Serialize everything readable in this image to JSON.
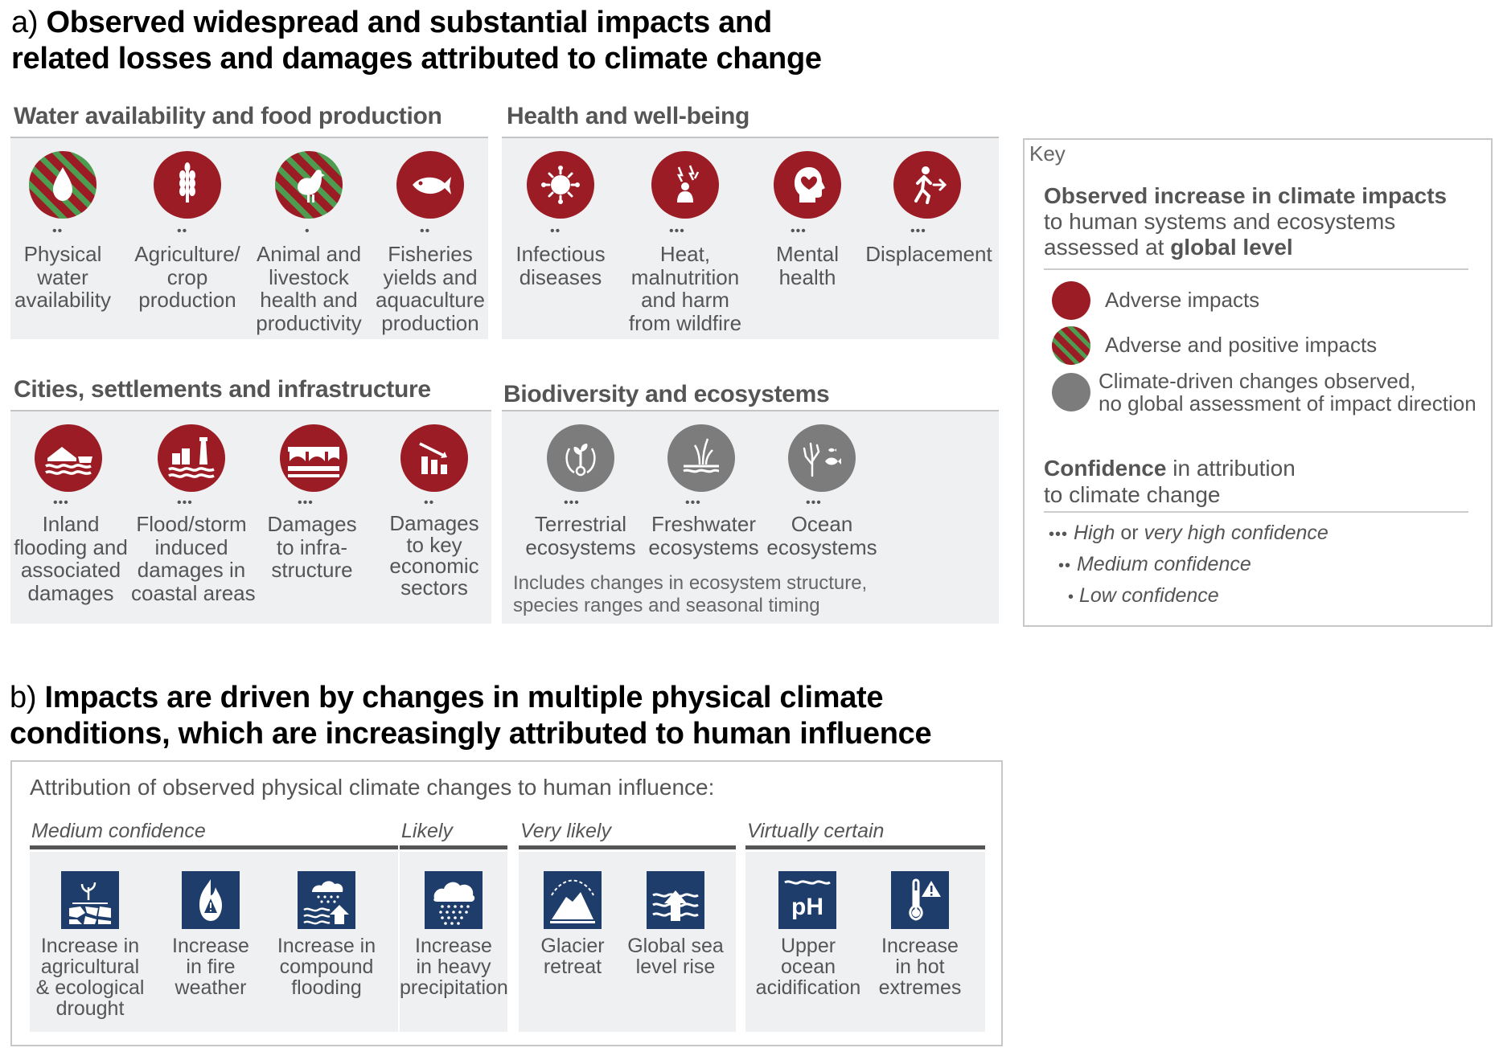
{
  "panel_a": {
    "letter": "a)",
    "title_line1": "Observed widespread and substantial impacts and",
    "title_line2": "related losses and damages attributed to climate change",
    "groups": [
      {
        "heading": "Water availability and food production",
        "tiles": [
          {
            "icon": "water-drop-icon",
            "impact": "adverse-and-positive",
            "dots": "••",
            "label": [
              "Physical",
              "water",
              "availability"
            ]
          },
          {
            "icon": "wheat-icon",
            "impact": "adverse",
            "dots": "••",
            "label": [
              "Agriculture/",
              "crop",
              "production"
            ]
          },
          {
            "icon": "chicken-icon",
            "impact": "adverse-and-positive",
            "dots": "•",
            "label": [
              "Animal and",
              "livestock",
              "health and",
              "productivity"
            ]
          },
          {
            "icon": "fish-icon",
            "impact": "adverse",
            "dots": "••",
            "label": [
              "Fisheries",
              "yields and",
              "aquaculture",
              "production"
            ]
          }
        ]
      },
      {
        "heading": "Health and well-being",
        "tiles": [
          {
            "icon": "virus-icon",
            "impact": "adverse",
            "dots": "••",
            "label": [
              "Infectious",
              "diseases"
            ]
          },
          {
            "icon": "heat-person-icon",
            "impact": "adverse",
            "dots": "•••",
            "label": [
              "Heat,",
              "malnutrition",
              "and harm",
              "from wildfire"
            ]
          },
          {
            "icon": "head-heart-icon",
            "impact": "adverse",
            "dots": "•••",
            "label": [
              "Mental",
              "health"
            ]
          },
          {
            "icon": "running-person-icon",
            "impact": "adverse",
            "dots": "•••",
            "label": [
              "Displacement"
            ]
          }
        ]
      },
      {
        "heading": "Cities, settlements and infrastructure",
        "tiles": [
          {
            "icon": "flooded-house-icon",
            "impact": "adverse",
            "dots": "•••",
            "label": [
              "Inland",
              "flooding and",
              "associated",
              "damages"
            ]
          },
          {
            "icon": "lighthouse-icon",
            "impact": "adverse",
            "dots": "•••",
            "label": [
              "Flood/storm",
              "induced",
              "damages in",
              "coastal areas"
            ]
          },
          {
            "icon": "bridge-icon",
            "impact": "adverse",
            "dots": "•••",
            "label": [
              "Damages",
              "to infra-",
              "structure"
            ]
          },
          {
            "icon": "declining-chart-icon",
            "impact": "adverse",
            "dots": "••",
            "label": [
              "Damages",
              "to key",
              "economic",
              "sectors"
            ]
          }
        ]
      },
      {
        "heading": "Biodiversity and ecosystems",
        "tiles": [
          {
            "icon": "plant-cycle-icon",
            "impact": "climate-driven",
            "dots": "•••",
            "label": [
              "Terrestrial",
              "ecosystems"
            ]
          },
          {
            "icon": "reeds-icon",
            "impact": "climate-driven",
            "dots": "•••",
            "label": [
              "Freshwater",
              "ecosystems"
            ]
          },
          {
            "icon": "coral-fish-icon",
            "impact": "climate-driven",
            "dots": "•••",
            "label": [
              "Ocean",
              "ecosystems"
            ]
          }
        ],
        "note": [
          "Includes changes in ecosystem structure,",
          "species ranges and seasonal timing"
        ]
      }
    ],
    "key": {
      "title": "Key",
      "heading_bold": "Observed increase in climate impacts",
      "heading_rest_1": "to human systems and ecosystems",
      "heading_rest_2_pre": "assessed at ",
      "heading_rest_2_bold": "global level",
      "legend": [
        {
          "swatch": "adverse",
          "label": [
            "Adverse impacts"
          ]
        },
        {
          "swatch": "adverse-and-positive",
          "label": [
            "Adverse and positive impacts"
          ]
        },
        {
          "swatch": "climate-driven",
          "label": [
            "Climate-driven changes observed,",
            "no global assessment of impact direction"
          ]
        }
      ],
      "confidence_bold": "Confidence",
      "confidence_rest_1": " in attribution",
      "confidence_rest_2": "to climate change",
      "confidence_levels": [
        {
          "dots": "•••",
          "label_italic_1": "High",
          "label_plain": " or ",
          "label_italic_2": "very high confidence"
        },
        {
          "dots": "••",
          "label_italic_1": "Medium confidence",
          "label_plain": "",
          "label_italic_2": ""
        },
        {
          "dots": "•",
          "label_italic_1": "Low confidence",
          "label_plain": "",
          "label_italic_2": ""
        }
      ]
    }
  },
  "panel_b": {
    "letter": "b)",
    "title_line1": "Impacts are driven by changes in multiple physical climate",
    "title_line2": "conditions, which are increasingly attributed to human influence",
    "intro": "Attribution of observed physical climate changes to human influence:",
    "groups": [
      {
        "title": "Medium confidence",
        "items": [
          {
            "icon": "drought-icon",
            "label": [
              "Increase in",
              "agricultural",
              "& ecological",
              "drought"
            ]
          },
          {
            "icon": "fire-icon",
            "label": [
              "Increase",
              "in fire",
              "weather"
            ]
          },
          {
            "icon": "compound-flooding-icon",
            "label": [
              "Increase in",
              "compound",
              "flooding"
            ]
          }
        ]
      },
      {
        "title": "Likely",
        "items": [
          {
            "icon": "heavy-rain-icon",
            "label": [
              "Increase",
              "in heavy",
              "precipitation"
            ]
          }
        ]
      },
      {
        "title": "Very likely",
        "items": [
          {
            "icon": "glacier-icon",
            "label": [
              "Glacier",
              "retreat"
            ]
          },
          {
            "icon": "sea-level-rise-icon",
            "label": [
              "Global sea",
              "level rise"
            ]
          }
        ]
      },
      {
        "title": "Virtually certain",
        "items": [
          {
            "icon": "ph-icon",
            "label": [
              "Upper",
              "ocean",
              "acidification"
            ],
            "icon_text": "pH"
          },
          {
            "icon": "thermometer-icon",
            "label": [
              "Increase",
              "in hot",
              "extremes"
            ]
          }
        ]
      }
    ]
  },
  "colors": {
    "adverse": "#9b1c24",
    "positive_stripe": "#4e9c4f",
    "climate_driven": "#7c7c7c",
    "panel_bg": "#eef0f2",
    "navy": "#1e3d6b"
  }
}
